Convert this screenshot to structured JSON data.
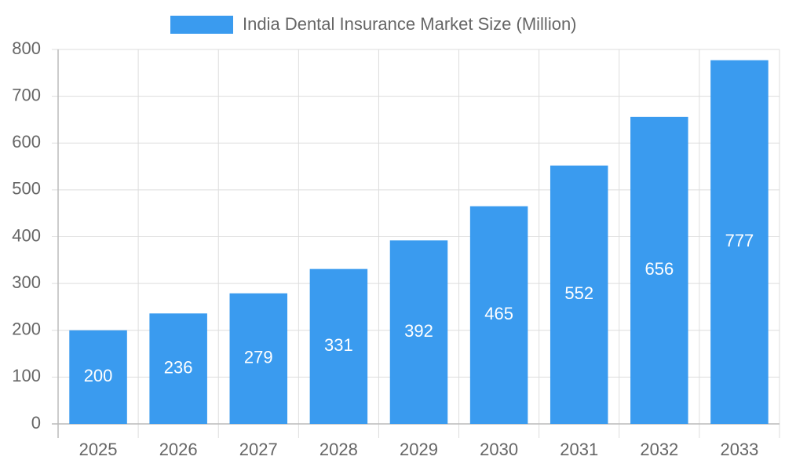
{
  "chart_data": {
    "type": "bar",
    "categories": [
      "2025",
      "2026",
      "2027",
      "2028",
      "2029",
      "2030",
      "2031",
      "2032",
      "2033"
    ],
    "series": [
      {
        "name": "India Dental Insurance Market Size (Million)",
        "color": "#3a9bef",
        "values": [
          200,
          236,
          279,
          331,
          392,
          465,
          552,
          656,
          777
        ]
      }
    ],
    "ylim": [
      0,
      800
    ],
    "yticks": [
      0,
      100,
      200,
      300,
      400,
      500,
      600,
      700,
      800
    ],
    "grid": true,
    "legend": "top"
  }
}
